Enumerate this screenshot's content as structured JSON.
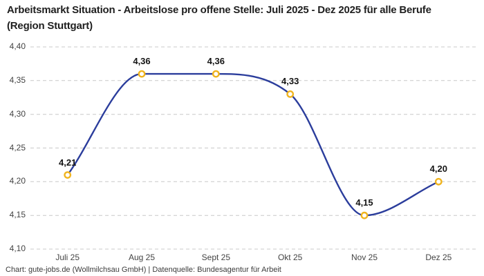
{
  "header": {
    "title": "Arbeitsmarkt Situation - Arbeitslose pro offene Stelle: Juli 2025 - Dez 2025 für alle Berufe (Region Stuttgart)"
  },
  "footer": {
    "attribution": "Chart: gute-jobs.de (Wollmilchsau GmbH) | Datenquelle: Bundesagentur für Arbeit"
  },
  "colors": {
    "line": "#2b3d9c",
    "marker_ring": "#f0b41e",
    "marker_fill": "#ffffff",
    "grid": "#c8c8c8",
    "title_text": "#1f1f1f",
    "axis_text": "#434343",
    "point_label_text": "#141414",
    "footer_text": "#3b3b3b",
    "background": "#ffffff"
  },
  "chart_data": {
    "type": "line",
    "title": "Arbeitsmarkt Situation - Arbeitslose pro offene Stelle: Juli 2025 - Dez 2025 für alle Berufe (Region Stuttgart)",
    "categories": [
      "Juli 25",
      "Aug 25",
      "Sept 25",
      "Okt 25",
      "Nov 25",
      "Dez 25"
    ],
    "values": [
      4.21,
      4.36,
      4.36,
      4.33,
      4.15,
      4.2
    ],
    "point_labels": [
      "4,21",
      "4,36",
      "4,36",
      "4,33",
      "4,15",
      "4,20"
    ],
    "xlabel": "",
    "ylabel": "",
    "ylim": [
      4.1,
      4.4
    ],
    "yticks": [
      4.1,
      4.15,
      4.2,
      4.25,
      4.3,
      4.35,
      4.4
    ],
    "ytick_labels": [
      "4,10",
      "4,15",
      "4,20",
      "4,25",
      "4,30",
      "4,35",
      "4,40"
    ],
    "grid": "horizontal-dashed",
    "legend_position": "none",
    "curve": "monotone"
  }
}
